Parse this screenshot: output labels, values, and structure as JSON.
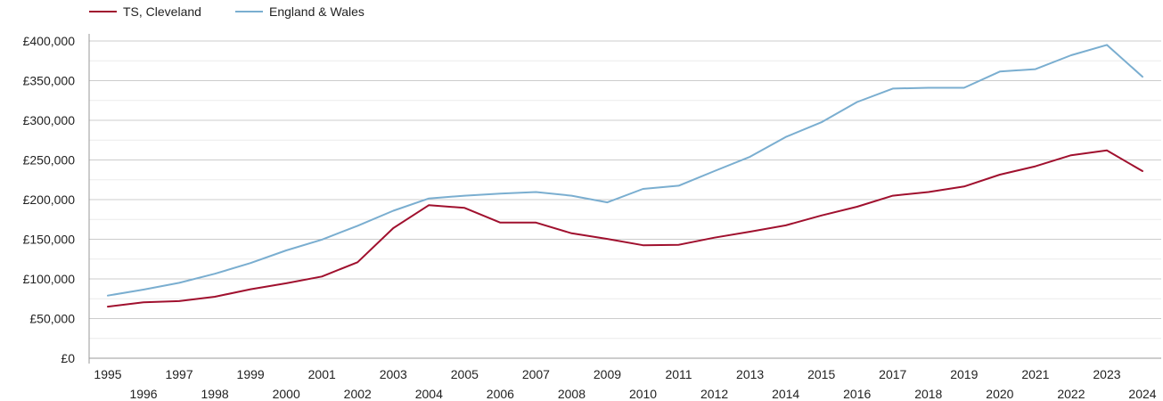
{
  "chart_data": {
    "type": "line",
    "title": "",
    "xlabel": "",
    "ylabel": "",
    "x": [
      1995,
      1996,
      1997,
      1998,
      1999,
      2000,
      2001,
      2002,
      2003,
      2004,
      2005,
      2006,
      2007,
      2008,
      2009,
      2010,
      2011,
      2012,
      2013,
      2014,
      2015,
      2016,
      2017,
      2018,
      2019,
      2020,
      2021,
      2022,
      2023,
      2024
    ],
    "xlim": [
      1995,
      2024
    ],
    "ylim": [
      0,
      400000
    ],
    "y_ticks": [
      {
        "value": 0,
        "label": "£0"
      },
      {
        "value": 50000,
        "label": "£50,000"
      },
      {
        "value": 100000,
        "label": "£100,000"
      },
      {
        "value": 150000,
        "label": "£150,000"
      },
      {
        "value": 200000,
        "label": "£200,000"
      },
      {
        "value": 250000,
        "label": "£250,000"
      },
      {
        "value": 300000,
        "label": "£300,000"
      },
      {
        "value": 350000,
        "label": "£350,000"
      },
      {
        "value": 400000,
        "label": "£400,000"
      }
    ],
    "x_tick_labels": [
      "1995",
      "1996",
      "1997",
      "1998",
      "1999",
      "2000",
      "2001",
      "2002",
      "2003",
      "2004",
      "2005",
      "2006",
      "2007",
      "2008",
      "2009",
      "2010",
      "2011",
      "2012",
      "2013",
      "2014",
      "2015",
      "2016",
      "2017",
      "2018",
      "2019",
      "2020",
      "2021",
      "2022",
      "2023",
      "2024"
    ],
    "grid": true,
    "legend_position": "top-left",
    "series": [
      {
        "name": "TS, Cleveland",
        "color": "#a0102e",
        "values": [
          65000,
          70500,
          72000,
          77500,
          87000,
          94500,
          103000,
          121000,
          164000,
          193000,
          189500,
          171000,
          171000,
          157500,
          150500,
          142500,
          143000,
          152000,
          159500,
          167500,
          180000,
          191000,
          205000,
          209500,
          216500,
          231500,
          242000,
          256000,
          262000,
          236000
        ]
      },
      {
        "name": "England & Wales",
        "color": "#7aaed0",
        "values": [
          79000,
          86500,
          95000,
          106500,
          120000,
          136000,
          149500,
          167000,
          186000,
          201500,
          205000,
          207500,
          209500,
          205000,
          196500,
          213500,
          217500,
          236000,
          254000,
          279000,
          297500,
          323000,
          340000,
          341000,
          341000,
          361500,
          364500,
          382000,
          395000,
          355000
        ]
      }
    ]
  }
}
